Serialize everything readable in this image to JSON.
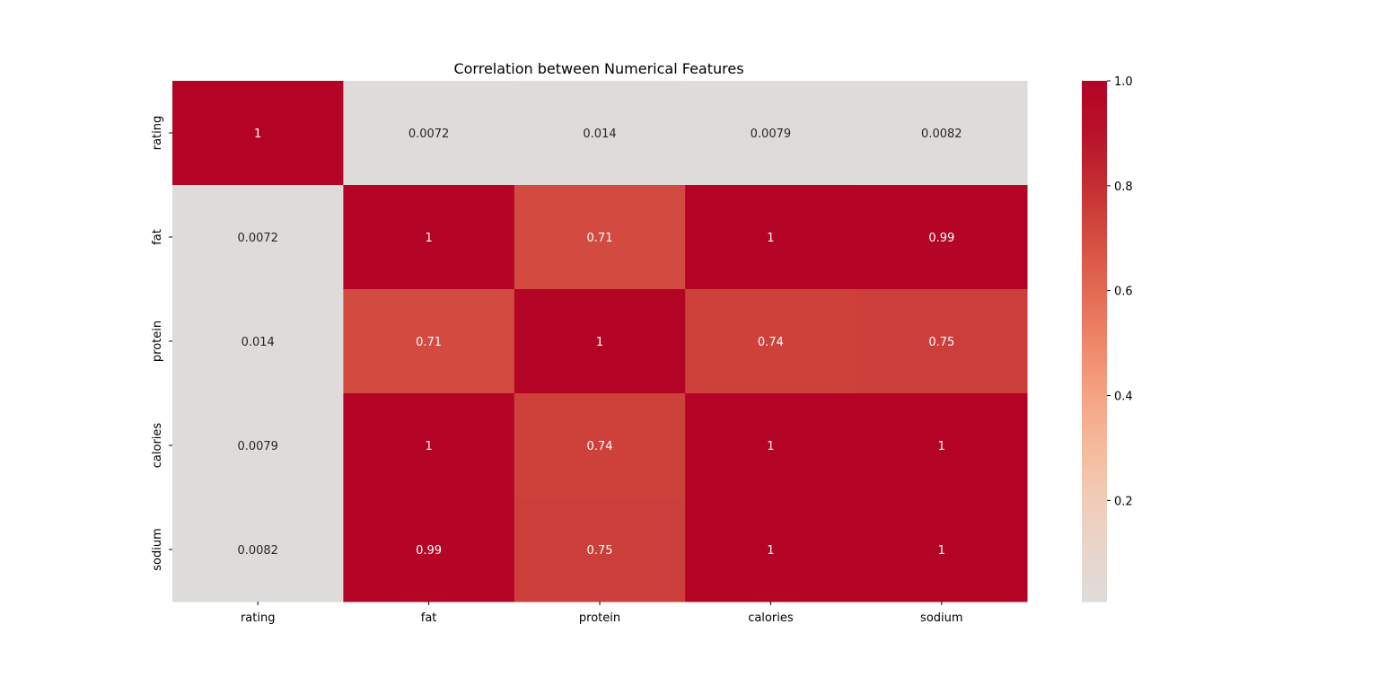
{
  "chart_data": {
    "type": "heatmap",
    "title": "Correlation between Numerical Features",
    "xlabel": "",
    "ylabel": "",
    "x_categories": [
      "rating",
      "fat",
      "protein",
      "calories",
      "sodium"
    ],
    "y_categories": [
      "rating",
      "fat",
      "protein",
      "calories",
      "sodium"
    ],
    "values": [
      [
        1,
        0.0072,
        0.014,
        0.0079,
        0.0082
      ],
      [
        0.0072,
        1,
        0.71,
        1,
        0.99
      ],
      [
        0.014,
        0.71,
        1,
        0.74,
        0.75
      ],
      [
        0.0079,
        1,
        0.74,
        1,
        1
      ],
      [
        0.0082,
        0.99,
        0.75,
        1,
        1
      ]
    ],
    "annotations": [
      [
        "1",
        "0.0072",
        "0.014",
        "0.0079",
        "0.0082"
      ],
      [
        "0.0072",
        "1",
        "0.71",
        "1",
        "0.99"
      ],
      [
        "0.014",
        "0.71",
        "1",
        "0.74",
        "0.75"
      ],
      [
        "0.0079",
        "1",
        "0.74",
        "1",
        "1"
      ],
      [
        "0.0082",
        "0.99",
        "0.75",
        "1",
        "1"
      ]
    ],
    "colormap": "coolwarm",
    "colormap_center": 0,
    "colorbar": {
      "min": 0.0072,
      "max": 1,
      "ticks": [
        0.2,
        0.4,
        0.6,
        0.8,
        1.0
      ],
      "tick_labels": [
        "0.2",
        "0.4",
        "0.6",
        "0.8",
        "1.0"
      ]
    },
    "colors": {
      "low": "#dddcdc",
      "high": "#b40426"
    }
  }
}
